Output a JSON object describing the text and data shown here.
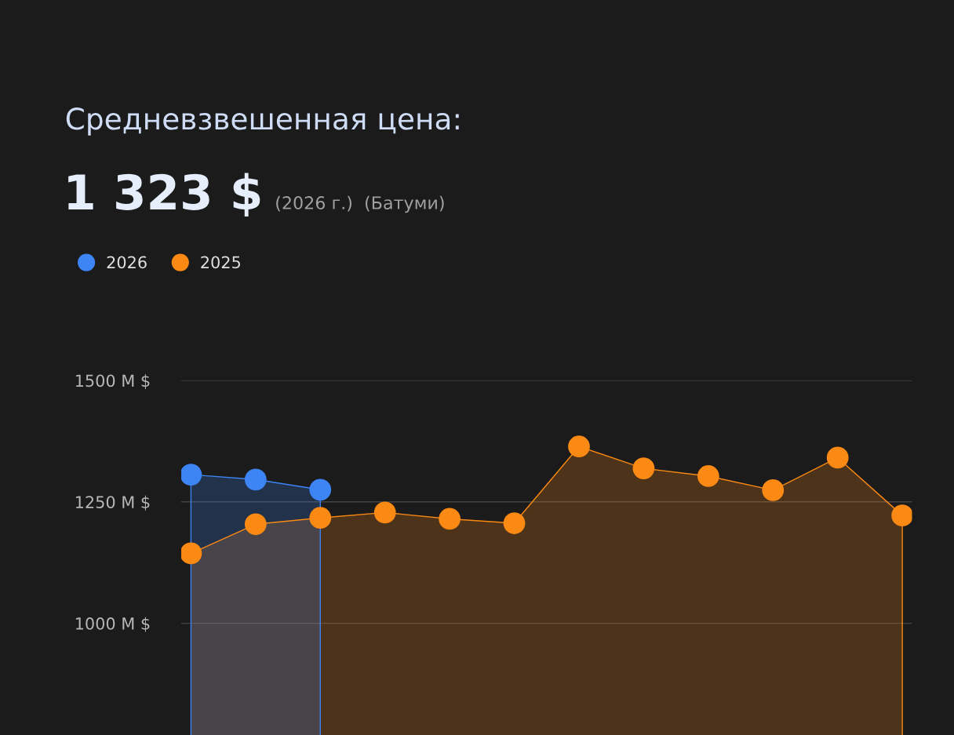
{
  "chart_data": {
    "type": "area",
    "title": "Средневзвешенная цена:",
    "annotations": [
      "1 323 $",
      "(2026 г.)  (Батуми)"
    ],
    "categories": [
      null,
      null,
      null,
      null,
      null,
      null,
      null,
      null,
      null,
      null,
      null,
      null
    ],
    "series": [
      {
        "name": "2026",
        "color": "#3d85f5",
        "values": [
          1306,
          1296,
          1275,
          null,
          null,
          null,
          null,
          null,
          null,
          null,
          null,
          null
        ]
      },
      {
        "name": "2025",
        "color": "#fb8a14",
        "values": [
          1144,
          1204,
          1217,
          1228,
          1215,
          1206,
          1364,
          1319,
          1303,
          1274,
          1341,
          1222
        ]
      }
    ],
    "ylim": [
      770,
      1500
    ],
    "yticks": [
      {
        "value": 1000,
        "label": "1000 M $"
      },
      {
        "value": 1250,
        "label": "1250 M $"
      },
      {
        "value": 1500,
        "label": "1500 M $"
      }
    ],
    "grid": "y",
    "legend": "top left",
    "marker": "circle",
    "tick_labels": "y"
  }
}
